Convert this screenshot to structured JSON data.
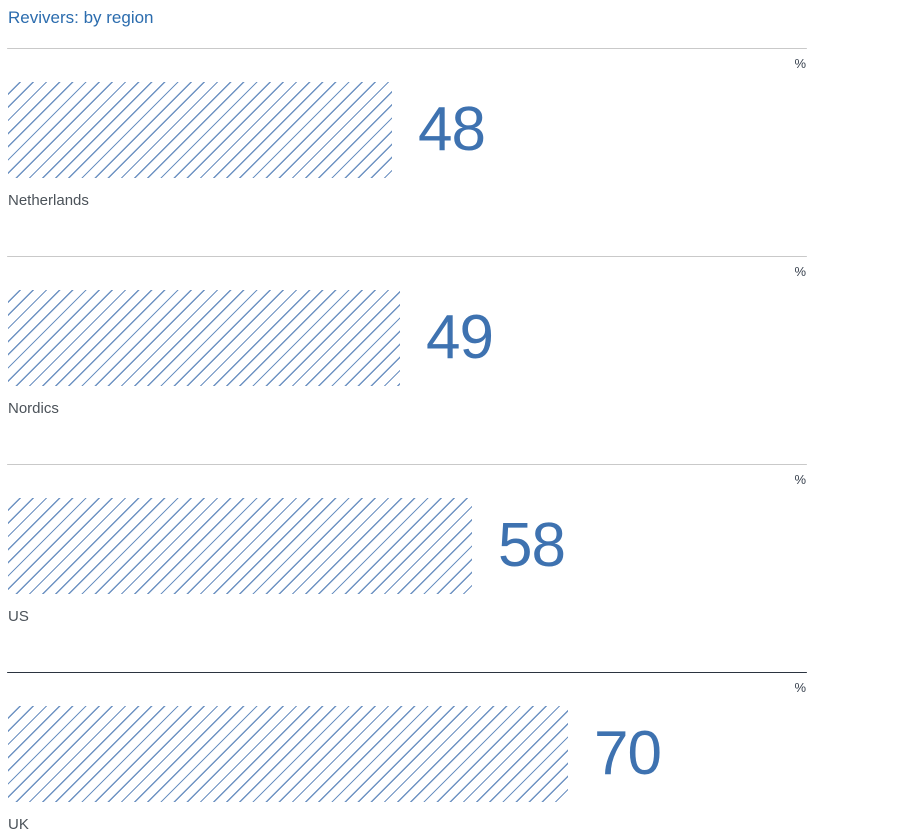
{
  "page": {
    "title": "Revivers: by region"
  },
  "chart_data": {
    "type": "bar",
    "orientation": "horizontal",
    "title": "Revivers: by region",
    "unit": "%",
    "categories": [
      "Netherlands",
      "Nordics",
      "US",
      "UK"
    ],
    "values": [
      48,
      49,
      58,
      70
    ],
    "xlim": [
      0,
      100
    ],
    "grid": false,
    "legend": false,
    "colors": {
      "title": "#2b6cae",
      "bar_hatch": "#6d92c2",
      "value_text": "#3e72b0",
      "category_label": "#4b5259",
      "unit_label": "#3a4350",
      "separator": "#c9c9c9",
      "separator_dark": "#2b3440"
    }
  }
}
